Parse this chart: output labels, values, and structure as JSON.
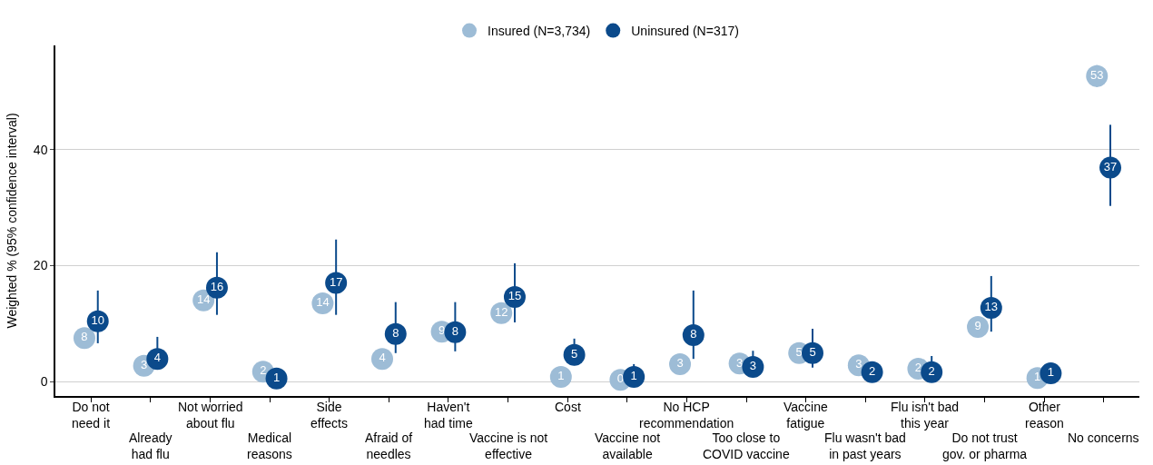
{
  "chart_data": {
    "type": "scatter",
    "ylabel": "Weighted % (95% confidence interval)",
    "categories": [
      "Do not\nneed it",
      "Already\nhad flu",
      "Not worried\nabout flu",
      "Medical\nreasons",
      "Side\neffects",
      "Afraid of\nneedles",
      "Haven't\nhad time",
      "Vaccine is not\neffective",
      "Cost",
      "Vaccine not\navailable",
      "No HCP\nrecommendation",
      "Too close to\nCOVID vaccine",
      "Vaccine\nfatigue",
      "Flu wasn't bad\nin past years",
      "Flu isn't bad\nthis year",
      "Do not trust\ngov. or pharma",
      "Other\nreason",
      "No concerns"
    ],
    "series": [
      {
        "name": "Insured (N=3,734)",
        "color": "#9dbcd6",
        "values": [
          7.5,
          2.7,
          14.0,
          1.7,
          13.5,
          3.9,
          8.6,
          11.8,
          0.8,
          0.3,
          3.0,
          3.1,
          4.9,
          2.8,
          2.2,
          9.4,
          0.6,
          52.7
        ],
        "value_labels": [
          "8",
          "3",
          "14",
          "2",
          "14",
          "4",
          "9",
          "12",
          "1",
          "0",
          "3",
          "3",
          "5",
          "3",
          "2",
          "9",
          "1",
          "53"
        ],
        "errors": [
          null,
          null,
          null,
          null,
          null,
          null,
          null,
          null,
          null,
          null,
          null,
          null,
          null,
          null,
          null,
          null,
          null,
          [
            50.8,
            54.6
          ]
        ]
      },
      {
        "name": "Uninsured (N=317)",
        "color": "#0b4a8b",
        "values": [
          10.4,
          3.9,
          16.2,
          0.5,
          17.0,
          8.2,
          8.5,
          14.6,
          4.6,
          0.8,
          8.0,
          2.5,
          4.9,
          1.6,
          1.6,
          12.7,
          1.4,
          36.9
        ],
        "value_labels": [
          "10",
          "4",
          "16",
          "1",
          "17",
          "8",
          "8",
          "15",
          "5",
          "1",
          "8",
          "3",
          "5",
          "2",
          "2",
          "13",
          "1",
          "37"
        ],
        "errors": [
          [
            6.6,
            15.7
          ],
          [
            2.1,
            7.7
          ],
          [
            11.5,
            22.3
          ],
          null,
          [
            11.5,
            24.5
          ],
          [
            4.9,
            13.7
          ],
          [
            5.2,
            13.7
          ],
          [
            10.2,
            20.4
          ],
          [
            2.8,
            7.4
          ],
          [
            0.0,
            3.0
          ],
          [
            3.9,
            15.7
          ],
          [
            1.0,
            5.3
          ],
          [
            2.4,
            9.1
          ],
          [
            1.6,
            3.4
          ],
          [
            1.6,
            4.4
          ],
          [
            8.6,
            18.2
          ],
          [
            0.0,
            3.0
          ],
          [
            30.3,
            44.3
          ]
        ]
      }
    ],
    "ylim": [
      -2.5,
      58
    ],
    "yticks": [
      0,
      20,
      40
    ],
    "grid": "y",
    "legend": "top",
    "marker": "circle"
  }
}
